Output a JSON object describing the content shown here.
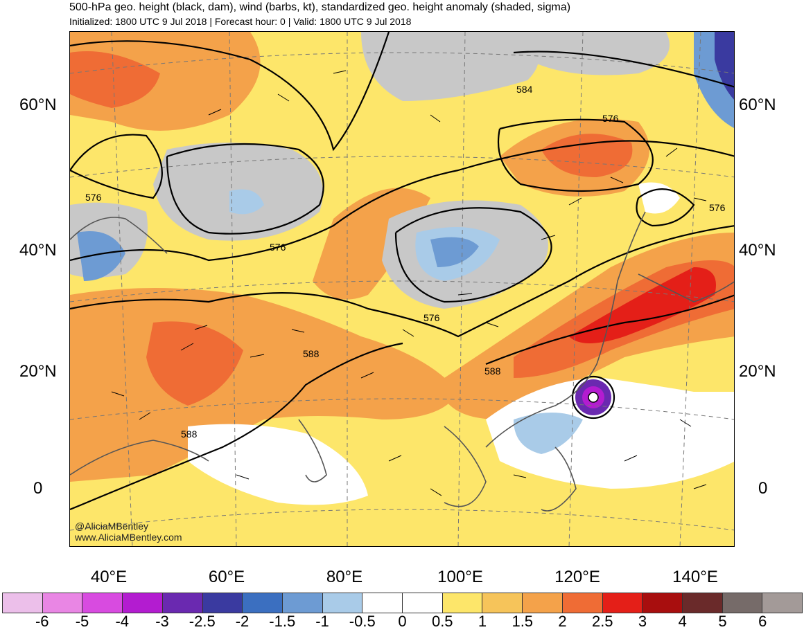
{
  "header": {
    "title": "500-hPa geo. height (black, dam), wind (barbs, kt), standardized geo. height anomaly (shaded, sigma)",
    "subtitle": "Initialized: 1800 UTC 9 Jul 2018 | Forecast hour: 0 | Valid: 1800 UTC 9 Jul 2018"
  },
  "axes": {
    "lat_left": [
      "60°N",
      "40°N",
      "20°N",
      "0"
    ],
    "lat_right": [
      "60°N",
      "40°N",
      "20°N",
      "0"
    ],
    "lon": [
      "40°E",
      "60°E",
      "80°E",
      "100°E",
      "120°E",
      "140°E"
    ]
  },
  "contours": {
    "labels": [
      "584",
      "576",
      "576",
      "576",
      "576",
      "576",
      "588",
      "588",
      "588"
    ]
  },
  "credits": {
    "handle": "@AliciaMBentley",
    "site": "www.AliciaMBentley.com"
  },
  "colorbar": {
    "colors": [
      "#ecbfea",
      "#e986e4",
      "#d84be0",
      "#b31cd0",
      "#6a29b0",
      "#3a3aa0",
      "#3b6fc0",
      "#6d9bd3",
      "#a9cbe8",
      "#ffffff",
      "#ffffff",
      "#fde66a",
      "#f6c45a",
      "#f4a24a",
      "#ef6c35",
      "#e41f18",
      "#a80e0e",
      "#6a2a2a",
      "#766b69",
      "#a39a98"
    ],
    "labels": [
      "-6",
      "-5",
      "-4",
      "-3",
      "-2.5",
      "-2",
      "-1.5",
      "-1",
      "-0.5",
      "0",
      "0.5",
      "1",
      "1.5",
      "2",
      "2.5",
      "3",
      "4",
      "5",
      "6"
    ]
  }
}
